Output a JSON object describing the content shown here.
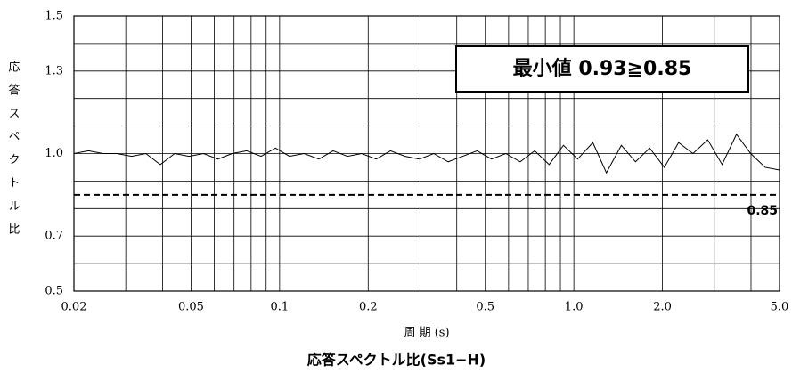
{
  "chart_data": {
    "type": "line",
    "title": "応答スペクトル比(Ss1−H)",
    "x_label": "周 期 (s)",
    "y_label": "応答スペクトル比",
    "annotation": "最小値 0.93≧0.85",
    "reference_line": {
      "value": 0.85,
      "label": "0.85"
    },
    "x_log": true,
    "grid": true,
    "xlim": [
      0.02,
      5
    ],
    "xticks": [
      0.02,
      0.05,
      0.1,
      0.2,
      0.5,
      {
        "value": 1,
        "label": "1.0"
      },
      {
        "value": 2,
        "label": "2.0"
      },
      {
        "value": 5,
        "label": "5.0"
      }
    ],
    "xminor": [
      0.03,
      0.04,
      0.06,
      0.07,
      0.08,
      0.09,
      0.3,
      0.4,
      0.6,
      0.7,
      0.8,
      0.9,
      3,
      4
    ],
    "ylim": [
      0.5,
      1.5
    ],
    "yticks": [
      0.5,
      0.7,
      {
        "value": 1,
        "label": "1.0"
      },
      1.3,
      1.5
    ],
    "yminor": [
      0.6,
      0.8,
      0.9,
      1.1,
      1.2,
      1.4
    ],
    "x": [
      0.02,
      0.0224,
      0.0251,
      0.028,
      0.0314,
      0.0351,
      0.0393,
      0.044,
      0.0492,
      0.0551,
      0.0617,
      0.069,
      0.0773,
      0.0865,
      0.0968,
      0.108,
      0.121,
      0.136,
      0.152,
      0.17,
      0.19,
      0.213,
      0.238,
      0.267,
      0.299,
      0.334,
      0.374,
      0.419,
      0.469,
      0.525,
      0.587,
      0.657,
      0.736,
      0.824,
      0.922,
      1.03,
      1.16,
      1.29,
      1.45,
      1.62,
      1.81,
      2.03,
      2.27,
      2.54,
      2.85,
      3.19,
      3.57,
      3.99,
      4.47,
      5.0
    ],
    "series": [
      {
        "color": "#000000",
        "values": [
          1.0,
          1.01,
          1.0,
          1.0,
          0.99,
          1.0,
          0.96,
          1.0,
          0.99,
          1.0,
          0.98,
          1.0,
          1.01,
          0.99,
          1.02,
          0.99,
          1.0,
          0.98,
          1.01,
          0.99,
          1.0,
          0.98,
          1.01,
          0.99,
          0.98,
          1.0,
          0.97,
          0.99,
          1.01,
          0.98,
          1.0,
          0.97,
          1.01,
          0.96,
          1.03,
          0.98,
          1.04,
          0.93,
          1.03,
          0.97,
          1.02,
          0.95,
          1.04,
          1.0,
          1.05,
          0.96,
          1.07,
          1.0,
          0.95,
          0.94
        ]
      }
    ]
  }
}
